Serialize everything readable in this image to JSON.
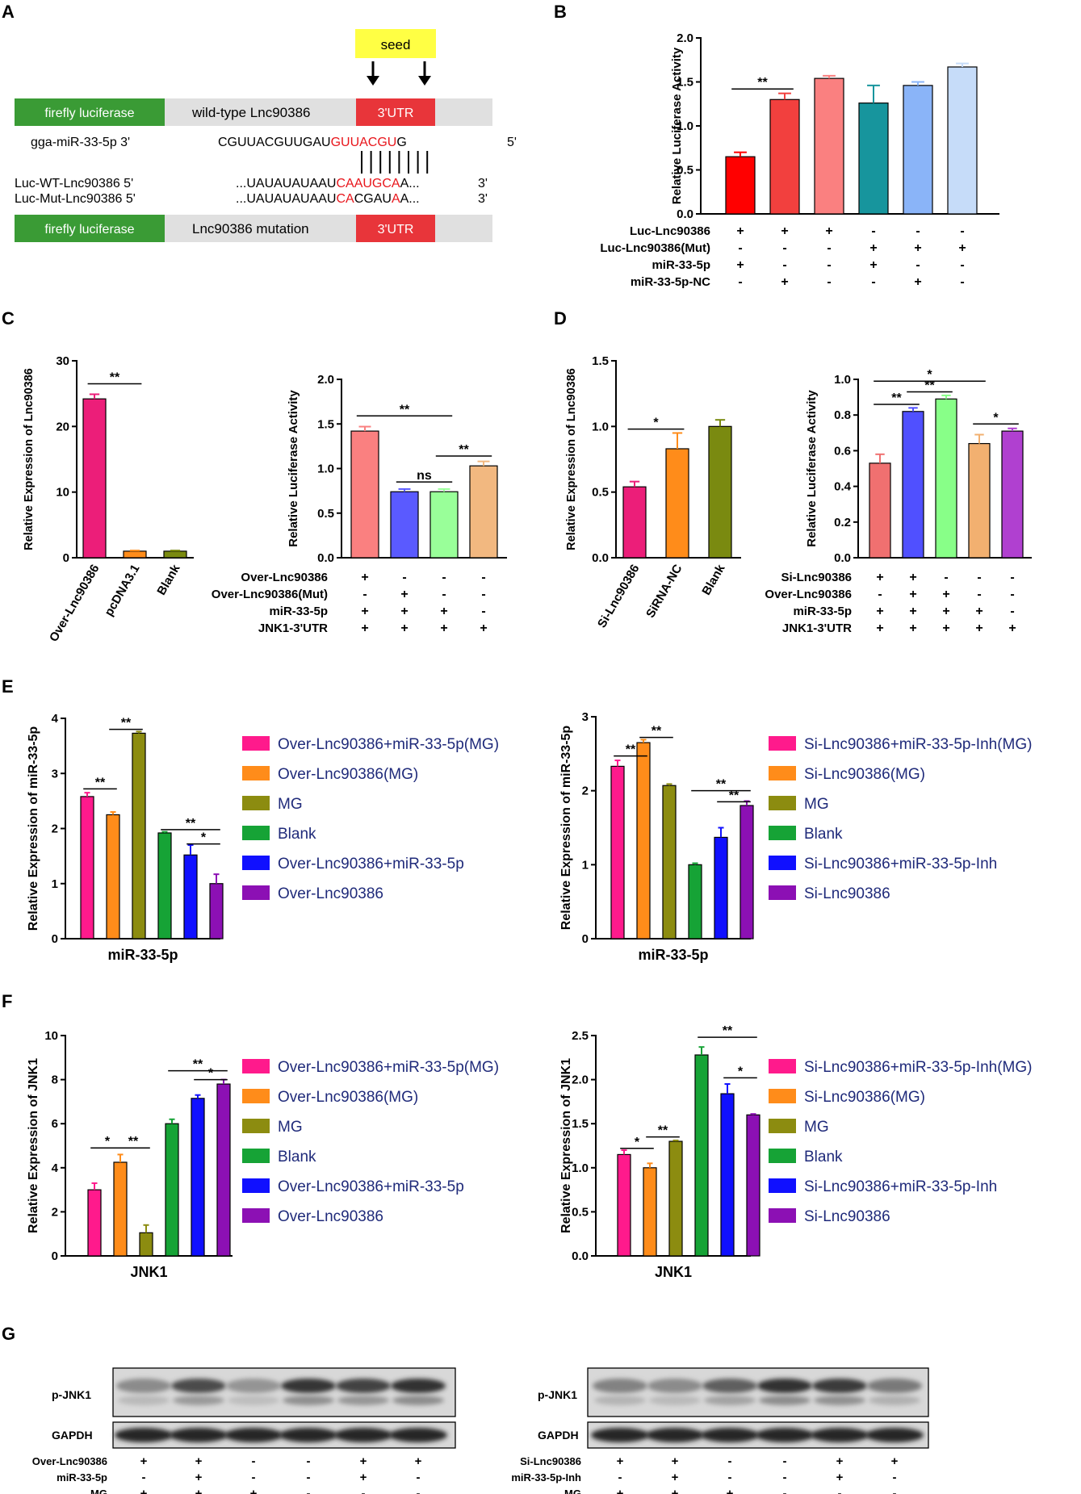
{
  "panel_letters": [
    "A",
    "B",
    "C",
    "D",
    "E",
    "F",
    "G"
  ],
  "colors": {
    "green": "#3a9b35",
    "red_utr": "#e8353a",
    "gray_bar": "#e0e0e0",
    "seed_yellow": "#ffff44",
    "mut_red": "#e8151b",
    "legend_text": "#1f2a7a",
    "b_bars": [
      "#ff0000",
      "#f2403e",
      "#fa8080",
      "#17959d",
      "#8ab4f8",
      "#c6dcf9"
    ],
    "c_left": [
      "#ec1e79",
      "#ff8c1a",
      "#7a8a10"
    ],
    "c_right": [
      "#fa8080",
      "#5a5aff",
      "#99ff99",
      "#f2b880"
    ],
    "d_left": [
      "#ec1e79",
      "#ff8c1a",
      "#7a8a10"
    ],
    "d_right": [
      "#f07070",
      "#5050ff",
      "#88ff88",
      "#f2b070",
      "#b040d0"
    ],
    "ef_bars": [
      "#ff1a8c",
      "#ff8c1a",
      "#8c8c10",
      "#16a336",
      "#1010ff",
      "#8c10b4"
    ]
  },
  "panel_a": {
    "seed_label": "seed",
    "top_construct": {
      "firefly": "firefly luciferase",
      "wildtype": "wild-type Lnc90386",
      "utr": "3'UTR"
    },
    "mirna_label": "gga-miR-33-5p 3'",
    "mirna_seq_plain": "CGUUACGUUGAU",
    "mirna_seq_red": "GUUACGU",
    "mirna_seq_end": "G",
    "mirna_end": "5'",
    "wt_label": "Luc-WT-Lnc90386 5'",
    "wt_seq_start": "...UAUAUAUAAU",
    "wt_seq_red": "CAAUGCA",
    "wt_seq_end": "A...",
    "wt_end": "3'",
    "mut_label": "Luc-Mut-Lnc90386 5'",
    "mut_seq_parts": [
      {
        "t": "...UAUAUAUAAU",
        "red": false
      },
      {
        "t": "CA",
        "red": true
      },
      {
        "t": "CGAU",
        "red": false
      },
      {
        "t": "A",
        "red": true
      },
      {
        "t": "A...",
        "red": false
      }
    ],
    "mut_end": "3'",
    "bottom_construct": {
      "firefly": "firefly luciferase",
      "mutation": "Lnc90386 mutation",
      "utr": "3'UTR"
    }
  },
  "chart_data": [
    {
      "id": "B",
      "type": "bar",
      "ylabel": "Relative Luciferase Activity",
      "ylim": [
        0,
        2.0
      ],
      "yticks": [
        "0.0",
        "0.5",
        "1.0",
        "1.5",
        "2.0"
      ],
      "values": [
        0.65,
        1.3,
        1.54,
        1.26,
        1.46,
        1.67
      ],
      "errors": [
        0.05,
        0.07,
        0.03,
        0.2,
        0.04,
        0.04
      ],
      "significance": [
        {
          "from": 0,
          "to": 1,
          "y": 1.42,
          "label": "**"
        }
      ],
      "condition_rows": [
        {
          "label": "Luc-Lnc90386",
          "signs": [
            "+",
            "+",
            "+",
            "-",
            "-",
            "-"
          ]
        },
        {
          "label": "Luc-Lnc90386(Mut)",
          "signs": [
            "-",
            "-",
            "-",
            "+",
            "+",
            "+"
          ]
        },
        {
          "label": "miR-33-5p",
          "signs": [
            "+",
            "-",
            "-",
            "+",
            "-",
            "-"
          ]
        },
        {
          "label": "miR-33-5p-NC",
          "signs": [
            "-",
            "+",
            "-",
            "-",
            "+",
            "-"
          ]
        }
      ]
    },
    {
      "id": "C-left",
      "type": "bar",
      "ylabel": "Relative Expression of  Lnc90386",
      "ylim": [
        0,
        30
      ],
      "yticks": [
        "0",
        "10",
        "20",
        "30"
      ],
      "categories": [
        "Over-Lnc90386",
        "pcDNA3.1",
        "Blank"
      ],
      "values": [
        24.2,
        1.0,
        1.0
      ],
      "errors": [
        0.7,
        0.1,
        0.1
      ],
      "significance": [
        {
          "from": 0,
          "to": 1,
          "y": 26.5,
          "label": "**"
        }
      ]
    },
    {
      "id": "C-right",
      "type": "bar",
      "ylabel": "Relative Luciferase Activity",
      "ylim": [
        0,
        2.0
      ],
      "yticks": [
        "0.0",
        "0.5",
        "1.0",
        "1.5",
        "2.0"
      ],
      "values": [
        1.42,
        0.74,
        0.74,
        1.03
      ],
      "errors": [
        0.05,
        0.03,
        0.03,
        0.05
      ],
      "significance": [
        {
          "from": 0,
          "to": 2,
          "y": 1.59,
          "label": "**"
        },
        {
          "from": 1,
          "to": 2,
          "y": 0.85,
          "label": "ns"
        },
        {
          "from": 2,
          "to": 3,
          "y": 1.14,
          "label": "**"
        }
      ],
      "condition_rows": [
        {
          "label": "Over-Lnc90386",
          "signs": [
            "+",
            "-",
            "-",
            "-"
          ]
        },
        {
          "label": "Over-Lnc90386(Mut)",
          "signs": [
            "-",
            "+",
            "-",
            "-"
          ]
        },
        {
          "label": "miR-33-5p",
          "signs": [
            "+",
            "+",
            "+",
            "-"
          ]
        },
        {
          "label": "JNK1-3'UTR",
          "signs": [
            "+",
            "+",
            "+",
            "+"
          ]
        }
      ]
    },
    {
      "id": "D-left",
      "type": "bar",
      "ylabel": "Relative Expression of  Lnc90386",
      "ylim": [
        0,
        1.5
      ],
      "yticks": [
        "0.0",
        "0.5",
        "1.0",
        "1.5"
      ],
      "categories": [
        "Si-Lnc90386",
        "SiRNA-NC",
        "Blank"
      ],
      "values": [
        0.54,
        0.83,
        1.0
      ],
      "errors": [
        0.04,
        0.12,
        0.05
      ],
      "significance": [
        {
          "from": 0,
          "to": 1,
          "y": 0.98,
          "label": "*"
        }
      ]
    },
    {
      "id": "D-right",
      "type": "bar",
      "ylabel": "Relative Luciferase Activity",
      "ylim": [
        0,
        1.0
      ],
      "yticks": [
        "0.0",
        "0.2",
        "0.4",
        "0.6",
        "0.8",
        "1.0"
      ],
      "values": [
        0.53,
        0.82,
        0.89,
        0.64,
        0.71
      ],
      "errors": [
        0.05,
        0.02,
        0.02,
        0.05,
        0.015
      ],
      "significance": [
        {
          "from": 0,
          "to": 3,
          "y": 0.99,
          "label": "*"
        },
        {
          "from": 0,
          "to": 1,
          "y": 0.86,
          "label": "**"
        },
        {
          "from": 1,
          "to": 2,
          "y": 0.93,
          "label": "**"
        },
        {
          "from": 3,
          "to": 4,
          "y": 0.75,
          "label": "*"
        }
      ],
      "condition_rows": [
        {
          "label": "Si-Lnc90386",
          "signs": [
            "+",
            "+",
            "-",
            "-",
            "-"
          ]
        },
        {
          "label": "Over-Lnc90386",
          "signs": [
            "-",
            "+",
            "+",
            "-",
            "-"
          ]
        },
        {
          "label": "miR-33-5p",
          "signs": [
            "+",
            "+",
            "+",
            "+",
            "-"
          ]
        },
        {
          "label": "JNK1-3'UTR",
          "signs": [
            "+",
            "+",
            "+",
            "+",
            "+"
          ]
        }
      ]
    },
    {
      "id": "E-left",
      "type": "bar",
      "ylabel": "Relative Expression of miR-33-5p",
      "xlabel": "miR-33-5p",
      "ylim": [
        0,
        4
      ],
      "yticks": [
        "0",
        "1",
        "2",
        "3",
        "4"
      ],
      "values": [
        2.58,
        2.25,
        3.73,
        1.92,
        1.52,
        1.0
      ],
      "errors": [
        0.07,
        0.05,
        0.03,
        0.02,
        0.18,
        0.17
      ],
      "significance": [
        {
          "from": 0,
          "to": 1,
          "y": 2.72,
          "label": "**"
        },
        {
          "from": 1,
          "to": 2,
          "y": 3.8,
          "label": "**"
        },
        {
          "from": 3,
          "to": 5,
          "y": 1.98,
          "label": "**"
        },
        {
          "from": 4,
          "to": 5,
          "y": 1.72,
          "label": "*"
        }
      ],
      "legend": [
        "Over-Lnc90386+miR-33-5p(MG)",
        "Over-Lnc90386(MG)",
        "MG",
        "Blank",
        "Over-Lnc90386+miR-33-5p",
        "Over-Lnc90386"
      ]
    },
    {
      "id": "E-right",
      "type": "bar",
      "ylabel": "Relative Expression of  miR-33-5p",
      "xlabel": "miR-33-5p",
      "ylim": [
        0,
        3
      ],
      "yticks": [
        "0",
        "1",
        "2",
        "3"
      ],
      "values": [
        2.33,
        2.65,
        2.07,
        1.0,
        1.37,
        1.8
      ],
      "errors": [
        0.08,
        0.04,
        0.02,
        0.02,
        0.13,
        0.06
      ],
      "significance": [
        {
          "from": 0,
          "to": 1,
          "y": 2.47,
          "label": "**"
        },
        {
          "from": 1,
          "to": 2,
          "y": 2.72,
          "label": "**"
        },
        {
          "from": 3,
          "to": 5,
          "y": 2.0,
          "label": "**"
        },
        {
          "from": 4,
          "to": 5,
          "y": 1.85,
          "label": "**"
        }
      ],
      "legend": [
        "Si-Lnc90386+miR-33-5p-Inh(MG)",
        "Si-Lnc90386(MG)",
        "MG",
        "Blank",
        "Si-Lnc90386+miR-33-5p-Inh",
        "Si-Lnc90386"
      ]
    },
    {
      "id": "F-left",
      "type": "bar",
      "ylabel": "Relative Expression of JNK1",
      "xlabel": "JNK1",
      "ylim": [
        0,
        10
      ],
      "yticks": [
        "0",
        "2",
        "4",
        "6",
        "8",
        "10"
      ],
      "values": [
        3.0,
        4.25,
        1.05,
        6.0,
        7.15,
        7.8
      ],
      "errors": [
        0.3,
        0.35,
        0.35,
        0.2,
        0.15,
        0.2
      ],
      "significance": [
        {
          "from": 0,
          "to": 1,
          "y": 4.9,
          "label": "*"
        },
        {
          "from": 1,
          "to": 2,
          "y": 4.9,
          "label": "**"
        },
        {
          "from": 3,
          "to": 5,
          "y": 8.4,
          "label": "**"
        },
        {
          "from": 4,
          "to": 5,
          "y": 8.0,
          "label": "*"
        }
      ],
      "legend": [
        "Over-Lnc90386+miR-33-5p(MG)",
        "Over-Lnc90386(MG)",
        "MG",
        "Blank",
        "Over-Lnc90386+miR-33-5p",
        "Over-Lnc90386"
      ]
    },
    {
      "id": "F-right",
      "type": "bar",
      "ylabel": "Relative Expression of JNK1",
      "xlabel": "JNK1",
      "ylim": [
        0,
        2.5
      ],
      "yticks": [
        "0.0",
        "0.5",
        "1.0",
        "1.5",
        "2.0",
        "2.5"
      ],
      "values": [
        1.15,
        1.0,
        1.3,
        2.28,
        1.84,
        1.6
      ],
      "errors": [
        0.05,
        0.05,
        0.01,
        0.09,
        0.11,
        0.01
      ],
      "significance": [
        {
          "from": 0,
          "to": 1,
          "y": 1.22,
          "label": "*"
        },
        {
          "from": 1,
          "to": 2,
          "y": 1.35,
          "label": "**"
        },
        {
          "from": 3,
          "to": 5,
          "y": 2.48,
          "label": "**"
        },
        {
          "from": 4,
          "to": 5,
          "y": 2.02,
          "label": "*"
        }
      ],
      "legend": [
        "Si-Lnc90386+miR-33-5p-Inh(MG)",
        "Si-Lnc90386(MG)",
        "MG",
        "Blank",
        "Si-Lnc90386+miR-33-5p-Inh",
        "Si-Lnc90386"
      ]
    }
  ],
  "panel_g": {
    "left": {
      "band_labels": [
        "p-JNK1",
        "GAPDH"
      ],
      "pjnk_intensity": [
        0.45,
        0.8,
        0.4,
        0.92,
        0.85,
        0.95
      ],
      "gapdh_intensity": [
        0.95,
        0.95,
        0.95,
        0.95,
        0.95,
        0.95
      ],
      "condition_rows": [
        {
          "label": "Over-Lnc90386",
          "signs": [
            "+",
            "+",
            "-",
            "-",
            "+",
            "+"
          ]
        },
        {
          "label": "miR-33-5p",
          "signs": [
            "-",
            "+",
            "-",
            "-",
            "+",
            "-"
          ]
        },
        {
          "label": "MG",
          "signs": [
            "+",
            "+",
            "+",
            "-",
            "-",
            "-"
          ]
        }
      ]
    },
    "right": {
      "band_labels": [
        "p-JNK1",
        "GAPDH"
      ],
      "pjnk_intensity": [
        0.5,
        0.45,
        0.7,
        0.95,
        0.9,
        0.55
      ],
      "gapdh_intensity": [
        0.95,
        0.95,
        0.95,
        0.95,
        0.95,
        0.95
      ],
      "condition_rows": [
        {
          "label": "Si-Lnc90386",
          "signs": [
            "+",
            "+",
            "-",
            "-",
            "+",
            "+"
          ]
        },
        {
          "label": "miR-33-5p-Inh",
          "signs": [
            "-",
            "+",
            "-",
            "-",
            "+",
            "-"
          ]
        },
        {
          "label": "MG",
          "signs": [
            "+",
            "+",
            "+",
            "-",
            "-",
            "-"
          ]
        }
      ]
    }
  }
}
